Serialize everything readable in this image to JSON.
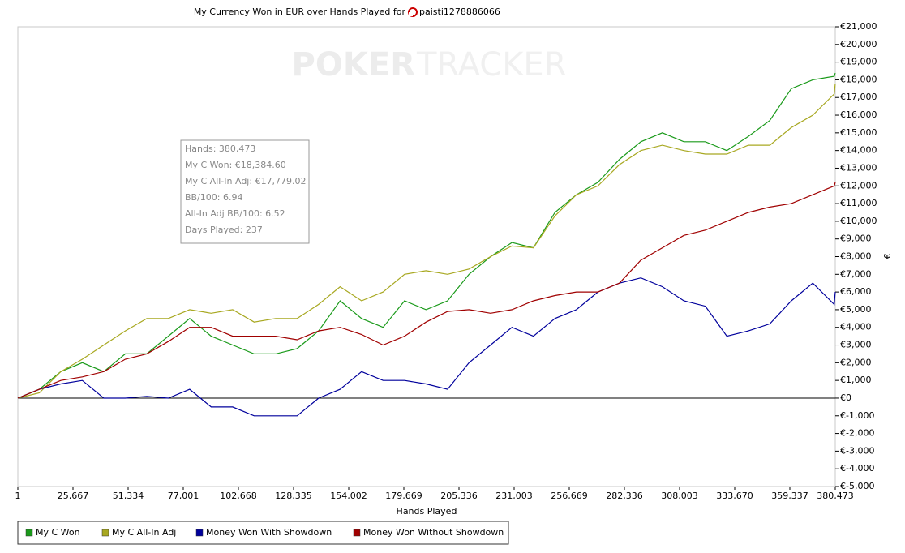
{
  "chart_data": {
    "type": "line",
    "title": "My Currency Won in EUR over Hands Played for",
    "player": "paisti1278886066",
    "watermark": [
      "POKER",
      "TRACKER"
    ],
    "xlabel": "Hands Played",
    "ylabel": "€",
    "x": [
      1,
      10000,
      20000,
      30000,
      40000,
      50000,
      60000,
      70000,
      80000,
      90000,
      100000,
      110000,
      120000,
      130000,
      140000,
      150000,
      160000,
      170000,
      180000,
      190000,
      200000,
      210000,
      220000,
      230000,
      240000,
      250000,
      260000,
      270000,
      280000,
      290000,
      300000,
      310000,
      320000,
      330000,
      340000,
      350000,
      360000,
      370000,
      380000,
      380473
    ],
    "series": [
      {
        "name": "My C Won",
        "color": "#1a9a1a",
        "values": [
          0,
          500,
          1500,
          2000,
          1500,
          2500,
          2500,
          3500,
          4500,
          3500,
          3000,
          2500,
          2500,
          2800,
          3800,
          5500,
          4500,
          4000,
          5500,
          5000,
          5500,
          7000,
          8000,
          8800,
          8500,
          10500,
          11500,
          12200,
          13500,
          14500,
          15000,
          14500,
          14500,
          14000,
          14800,
          15700,
          17500,
          18000,
          18200,
          18384.6
        ]
      },
      {
        "name": "My C All-In Adj",
        "color": "#a8a821",
        "values": [
          0,
          300,
          1500,
          2200,
          3000,
          3800,
          4500,
          4500,
          5000,
          4800,
          5000,
          4300,
          4500,
          4500,
          5300,
          6300,
          5500,
          6000,
          7000,
          7200,
          7000,
          7300,
          8000,
          8600,
          8500,
          10300,
          11500,
          12000,
          13200,
          14000,
          14300,
          14000,
          13800,
          13800,
          14300,
          14300,
          15300,
          16000,
          17200,
          17779.02
        ]
      },
      {
        "name": "Money Won With Showdown",
        "color": "#00009c",
        "values": [
          0,
          500,
          800,
          1000,
          0,
          0,
          100,
          0,
          500,
          -500,
          -500,
          -1000,
          -1000,
          -1000,
          0,
          500,
          1500,
          1000,
          1000,
          800,
          500,
          2000,
          3000,
          4000,
          3500,
          4500,
          5000,
          6000,
          6500,
          6800,
          6300,
          5500,
          5200,
          3500,
          3800,
          4200,
          5500,
          6500,
          5300,
          6000
        ]
      },
      {
        "name": "Money Won Without Showdown",
        "color": "#a00000",
        "values": [
          0,
          500,
          1000,
          1200,
          1500,
          2200,
          2500,
          3200,
          4000,
          4000,
          3500,
          3500,
          3500,
          3300,
          3800,
          4000,
          3600,
          3000,
          3500,
          4300,
          4900,
          5000,
          4800,
          5000,
          5500,
          5800,
          6000,
          6000,
          6500,
          7800,
          8500,
          9200,
          9500,
          10000,
          10500,
          10800,
          11000,
          11500,
          12000,
          12200
        ]
      }
    ],
    "xlim": [
      1,
      380473
    ],
    "xticks": [
      1,
      {
        "value": 25667,
        "label": "25,667"
      },
      {
        "value": 51334,
        "label": "51,334"
      },
      {
        "value": 77001,
        "label": "77,001"
      },
      {
        "value": 102668,
        "label": "102,668"
      },
      {
        "value": 128335,
        "label": "128,335"
      },
      {
        "value": 154002,
        "label": "154,002"
      },
      {
        "value": 179669,
        "label": "179,669"
      },
      {
        "value": 205336,
        "label": "205,336"
      },
      {
        "value": 231003,
        "label": "231,003"
      },
      {
        "value": 256669,
        "label": "256,669"
      },
      {
        "value": 282336,
        "label": "282,336"
      },
      {
        "value": 308003,
        "label": "308,003"
      },
      {
        "value": 333670,
        "label": "333,670"
      },
      {
        "value": 359337,
        "label": "359,337"
      },
      {
        "value": 380473,
        "label": "380,473"
      }
    ],
    "ylim": [
      -5000,
      21000
    ],
    "yticks": [
      {
        "value": 21000,
        "label": "€21,000"
      },
      {
        "value": 20000,
        "label": "€20,000"
      },
      {
        "value": 19000,
        "label": "€19,000"
      },
      {
        "value": 18000,
        "label": "€18,000"
      },
      {
        "value": 17000,
        "label": "€17,000"
      },
      {
        "value": 16000,
        "label": "€16,000"
      },
      {
        "value": 15000,
        "label": "€15,000"
      },
      {
        "value": 14000,
        "label": "€14,000"
      },
      {
        "value": 13000,
        "label": "€13,000"
      },
      {
        "value": 12000,
        "label": "€12,000"
      },
      {
        "value": 11000,
        "label": "€11,000"
      },
      {
        "value": 10000,
        "label": "€10,000"
      },
      {
        "value": 9000,
        "label": "€9,000"
      },
      {
        "value": 8000,
        "label": "€8,000"
      },
      {
        "value": 7000,
        "label": "€7,000"
      },
      {
        "value": 6000,
        "label": "€6,000"
      },
      {
        "value": 5000,
        "label": "€5,000"
      },
      {
        "value": 4000,
        "label": "€4,000"
      },
      {
        "value": 3000,
        "label": "€3,000"
      },
      {
        "value": 2000,
        "label": "€2,000"
      },
      {
        "value": 1000,
        "label": "€1,000"
      },
      {
        "value": 0,
        "label": "€0"
      },
      {
        "value": -1000,
        "label": "€-1,000"
      },
      {
        "value": -2000,
        "label": "€-2,000"
      },
      {
        "value": -3000,
        "label": "€-3,000"
      },
      {
        "value": -4000,
        "label": "€-4,000"
      },
      {
        "value": -5000,
        "label": "€-5,000"
      }
    ],
    "tooltip": [
      "Hands: 380,473",
      "My C Won: €18,384.60",
      "My C All-In Adj: €17,779.02",
      "BB/100: 6.94",
      "All-In Adj BB/100: 6.52",
      "Days Played: 237"
    ],
    "legend": "bottom-left"
  }
}
